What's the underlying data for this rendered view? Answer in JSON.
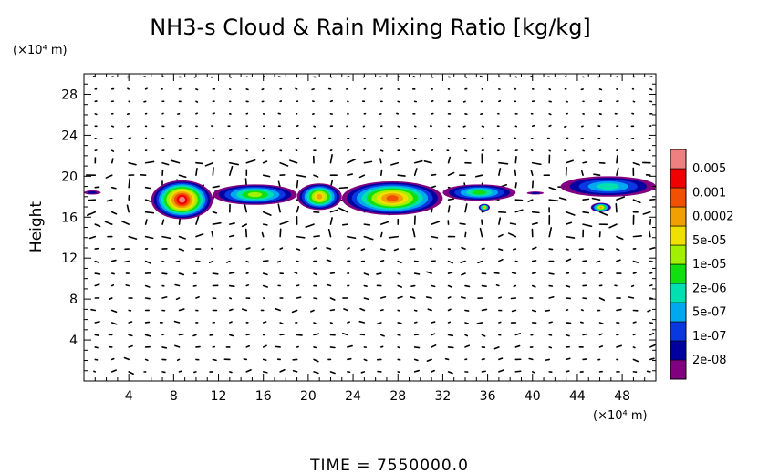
{
  "chart_data": {
    "type": "heatmap",
    "title": "NH3-s Cloud & Rain Mixing Ratio [kg/kg]",
    "ylabel": "Height",
    "xlabel": "",
    "x_unit": "(×10⁴ m)",
    "y_unit": "(×10⁴ m)",
    "xlim": [
      0,
      51
    ],
    "ylim": [
      0,
      30
    ],
    "x_ticks": [
      4,
      8,
      12,
      16,
      20,
      24,
      28,
      32,
      36,
      40,
      44,
      48
    ],
    "y_ticks": [
      4,
      8,
      12,
      16,
      20,
      24,
      28
    ],
    "x_tick_labels": [
      "4",
      "8",
      "12",
      "16",
      "20",
      "24",
      "28",
      "32",
      "36",
      "40",
      "44",
      "48"
    ],
    "y_tick_labels": [
      "4",
      "8",
      "12",
      "16",
      "20",
      "24",
      "28"
    ],
    "grid": false,
    "legend_position": "right",
    "colorbar": {
      "levels": [
        "2e-08",
        "1e-07",
        "5e-07",
        "2e-06",
        "1e-05",
        "5e-05",
        "0.0002",
        "0.001",
        "0.005"
      ],
      "colors": [
        "#800080",
        "#0000a0",
        "#0a38e0",
        "#00a8f0",
        "#00e0b0",
        "#10e010",
        "#a0f000",
        "#f0e000",
        "#f0a000",
        "#f05000",
        "#f00000",
        "#f08080"
      ]
    },
    "cloud_layers": [
      {
        "x_start": 0,
        "x_end": 1.5,
        "y_bottom": 18.2,
        "y_top": 18.6,
        "peak_level": 1
      },
      {
        "x_start": 6,
        "x_end": 11.5,
        "y_bottom": 15.8,
        "y_top": 19.6,
        "peak_level": 11
      },
      {
        "x_start": 11.5,
        "x_end": 19,
        "y_bottom": 17.2,
        "y_top": 19.2,
        "peak_level": 6
      },
      {
        "x_start": 19,
        "x_end": 23,
        "y_bottom": 16.7,
        "y_top": 19.3,
        "peak_level": 8
      },
      {
        "x_start": 23,
        "x_end": 32,
        "y_bottom": 16.2,
        "y_top": 19.5,
        "peak_level": 9
      },
      {
        "x_start": 32,
        "x_end": 38.5,
        "y_bottom": 17.6,
        "y_top": 19.2,
        "peak_level": 5
      },
      {
        "x_start": 35.2,
        "x_end": 36.2,
        "y_bottom": 16.6,
        "y_top": 17.3,
        "peak_level": 8
      },
      {
        "x_start": 39.5,
        "x_end": 41,
        "y_bottom": 18.2,
        "y_top": 18.5,
        "peak_level": 1
      },
      {
        "x_start": 42.5,
        "x_end": 51,
        "y_bottom": 18.0,
        "y_top": 20.0,
        "peak_level": 4
      },
      {
        "x_start": 45.2,
        "x_end": 47,
        "y_bottom": 16.5,
        "y_top": 17.4,
        "peak_level": 8
      }
    ]
  },
  "time_label": "TIME  =  7550000.0"
}
